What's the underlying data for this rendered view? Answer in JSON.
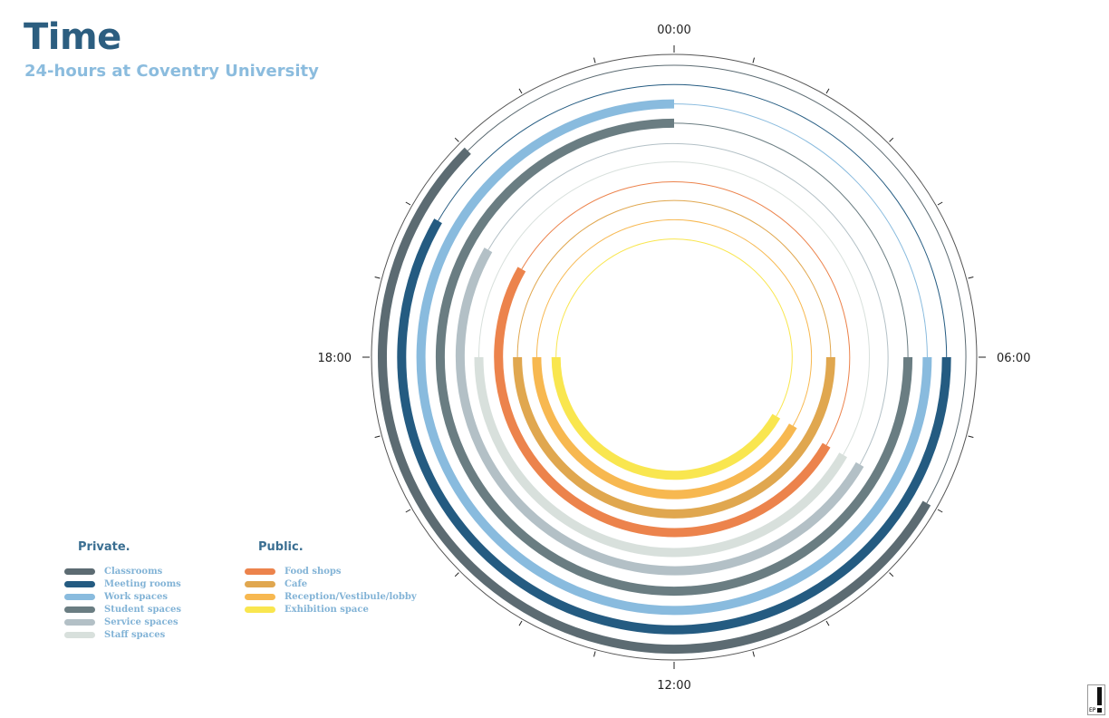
{
  "title": "Time",
  "subtitle": "24-hours at Coventry University",
  "legend": {
    "private": {
      "title": "Private.",
      "items": [
        {
          "label": "Classrooms",
          "color": "#5c6b72"
        },
        {
          "label": "Meeting rooms",
          "color": "#245b81"
        },
        {
          "label": "Work spaces",
          "color": "#89bbde"
        },
        {
          "label": "Student spaces",
          "color": "#6a7d82"
        },
        {
          "label": "Service spaces",
          "color": "#b3c0c6"
        },
        {
          "label": "Staff spaces",
          "color": "#d8e0dc"
        }
      ]
    },
    "public": {
      "title": "Public.",
      "items": [
        {
          "label": "Food shops",
          "color": "#ec834c"
        },
        {
          "label": "Cafe",
          "color": "#e0a74f"
        },
        {
          "label": "Reception/Vestibule/lobby",
          "color": "#f7b850"
        },
        {
          "label": "Exhibition space",
          "color": "#f9e64f"
        }
      ]
    }
  },
  "chart_data": {
    "type": "radial-bar",
    "title": "Time",
    "subtitle": "24-hours at Coventry University",
    "axis": {
      "unit": "hour",
      "range": [
        0,
        24
      ],
      "clockwise": true,
      "start_at": "top",
      "hour_labels": [
        {
          "hour": 0,
          "label": "00:00"
        },
        {
          "hour": 6,
          "label": "06:00"
        },
        {
          "hour": 12,
          "label": "12:00"
        },
        {
          "hour": 18,
          "label": "18:00"
        }
      ]
    },
    "series": [
      {
        "name": "Classrooms",
        "group": "Private.",
        "color": "#5c6b72",
        "open_start": 8,
        "open_end": 21
      },
      {
        "name": "Meeting rooms",
        "group": "Private.",
        "color": "#245b81",
        "open_start": 6,
        "open_end": 20
      },
      {
        "name": "Work spaces",
        "group": "Private.",
        "color": "#89bbde",
        "open_start": 6,
        "open_end": 24
      },
      {
        "name": "Student spaces",
        "group": "Private.",
        "color": "#6a7d82",
        "open_start": 6,
        "open_end": 24
      },
      {
        "name": "Service spaces",
        "group": "Private.",
        "color": "#b3c0c6",
        "open_start": 8,
        "open_end": 20
      },
      {
        "name": "Staff spaces",
        "group": "Private.",
        "color": "#d8e0dc",
        "open_start": 8,
        "open_end": 18
      },
      {
        "name": "Food shops",
        "group": "Public.",
        "color": "#ec834c",
        "open_start": 8,
        "open_end": 20
      },
      {
        "name": "Cafe",
        "group": "Public.",
        "color": "#e0a74f",
        "open_start": 6,
        "open_end": 18
      },
      {
        "name": "Reception/Vestibule/lobby",
        "group": "Public.",
        "color": "#f7b850",
        "open_start": 8,
        "open_end": 18
      },
      {
        "name": "Exhibition space",
        "group": "Public.",
        "color": "#f9e64f",
        "open_start": 8,
        "open_end": 18
      }
    ]
  }
}
